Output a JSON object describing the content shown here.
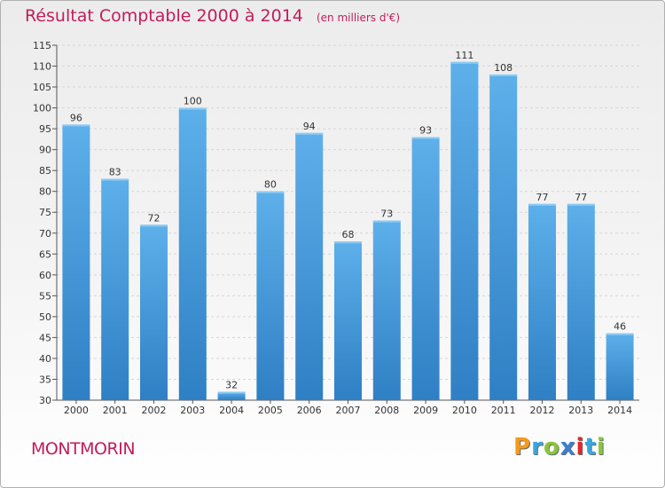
{
  "chart_data": {
    "type": "bar",
    "title": "Résultat Comptable 2000 à 2014",
    "subtitle": "(en milliers d'€)",
    "categories": [
      "2000",
      "2001",
      "2002",
      "2003",
      "2004",
      "2005",
      "2006",
      "2007",
      "2008",
      "2009",
      "2010",
      "2011",
      "2012",
      "2013",
      "2014"
    ],
    "values": [
      96,
      83,
      72,
      100,
      32,
      80,
      94,
      68,
      73,
      93,
      111,
      108,
      77,
      77,
      46
    ],
    "ylim": [
      30,
      115
    ],
    "yticks": [
      30,
      35,
      40,
      45,
      50,
      55,
      60,
      65,
      70,
      75,
      80,
      85,
      90,
      95,
      100,
      105,
      110,
      115
    ],
    "grid": true,
    "bar_color": "#4a9fdf",
    "xlabel": "",
    "ylabel": ""
  },
  "commune": "MONTMORIN",
  "logo": {
    "letters": [
      "P",
      "r",
      "o",
      "x",
      "i",
      "t",
      "i"
    ],
    "colors": [
      "#f39a1e",
      "#3aa7e0",
      "#8bc53f",
      "#3a7fd0",
      "#e3272c",
      "#3aa7e0",
      "#8bc53f"
    ]
  }
}
